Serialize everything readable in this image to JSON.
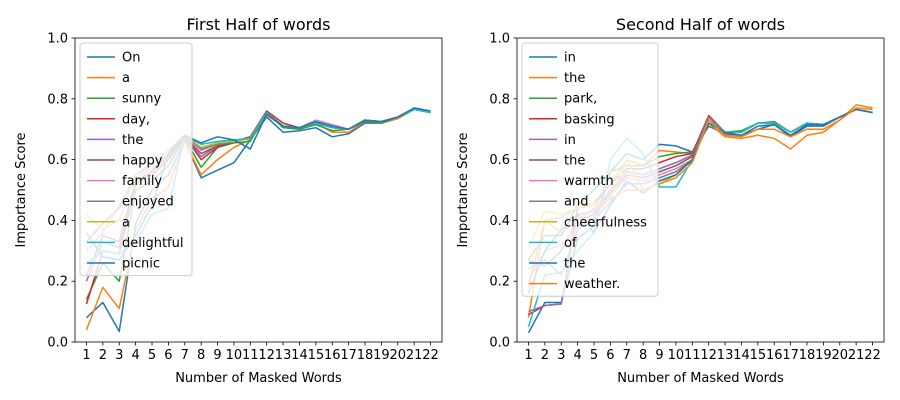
{
  "chart_data": [
    {
      "type": "line",
      "title": "First Half of words",
      "xlabel": "Number of Masked Words",
      "ylabel": "Importance Score",
      "xlim": [
        0.3,
        22.7
      ],
      "ylim": [
        0,
        1
      ],
      "x": [
        1,
        2,
        3,
        4,
        5,
        6,
        7,
        8,
        9,
        10,
        11,
        12,
        13,
        14,
        15,
        16,
        17,
        18,
        19,
        20,
        21,
        22
      ],
      "xticks": [
        "1",
        "2",
        "3",
        "4",
        "5",
        "6",
        "7",
        "8",
        "9",
        "10",
        "11",
        "12",
        "13",
        "14",
        "15",
        "16",
        "17",
        "18",
        "19",
        "20",
        "21",
        "22"
      ],
      "yticks": [
        "0.0",
        "0.2",
        "0.4",
        "0.6",
        "0.8",
        "1.0"
      ],
      "legend_position": "upper-left",
      "grid": false,
      "series": [
        {
          "name": "On",
          "color": "#1f77b4",
          "values": [
            0.08,
            0.13,
            0.035,
            0.39,
            0.5,
            0.55,
            0.66,
            0.54,
            0.565,
            0.59,
            0.665,
            0.74,
            0.69,
            0.695,
            0.705,
            0.675,
            0.685,
            0.72,
            0.72,
            0.735,
            0.765,
            0.755
          ]
        },
        {
          "name": "a",
          "color": "#ff7f0e",
          "values": [
            0.04,
            0.18,
            0.11,
            0.37,
            0.47,
            0.51,
            0.66,
            0.55,
            0.6,
            0.64,
            0.665,
            0.745,
            0.71,
            0.7,
            0.72,
            0.69,
            0.69,
            0.725,
            0.72,
            0.735,
            0.765,
            0.755
          ]
        },
        {
          "name": "sunny",
          "color": "#2ca02c",
          "values": [
            0.14,
            0.26,
            0.2,
            0.5,
            0.53,
            0.58,
            0.67,
            0.575,
            0.64,
            0.655,
            0.66,
            0.755,
            0.705,
            0.7,
            0.715,
            0.695,
            0.7,
            0.725,
            0.72,
            0.74,
            0.765,
            0.755
          ]
        },
        {
          "name": "day,",
          "color": "#d62728",
          "values": [
            0.125,
            0.3,
            0.29,
            0.52,
            0.55,
            0.6,
            0.675,
            0.6,
            0.64,
            0.66,
            0.675,
            0.76,
            0.72,
            0.705,
            0.72,
            0.71,
            0.7,
            0.73,
            0.725,
            0.74,
            0.765,
            0.755
          ]
        },
        {
          "name": "the",
          "color": "#9467bd",
          "values": [
            0.2,
            0.33,
            0.31,
            0.52,
            0.56,
            0.61,
            0.675,
            0.61,
            0.645,
            0.66,
            0.67,
            0.755,
            0.71,
            0.705,
            0.72,
            0.71,
            0.7,
            0.73,
            0.725,
            0.74,
            0.765,
            0.755
          ]
        },
        {
          "name": "happy",
          "color": "#8c564b",
          "values": [
            0.22,
            0.35,
            0.33,
            0.53,
            0.56,
            0.62,
            0.675,
            0.62,
            0.645,
            0.66,
            0.67,
            0.755,
            0.71,
            0.705,
            0.72,
            0.705,
            0.7,
            0.73,
            0.725,
            0.74,
            0.765,
            0.755
          ]
        },
        {
          "name": "family",
          "color": "#e377c2",
          "values": [
            0.3,
            0.36,
            0.45,
            0.54,
            0.57,
            0.62,
            0.68,
            0.63,
            0.65,
            0.66,
            0.67,
            0.755,
            0.71,
            0.705,
            0.73,
            0.715,
            0.7,
            0.73,
            0.725,
            0.74,
            0.765,
            0.755
          ]
        },
        {
          "name": "enjoyed",
          "color": "#7f7f7f",
          "values": [
            0.33,
            0.39,
            0.44,
            0.55,
            0.58,
            0.63,
            0.68,
            0.635,
            0.65,
            0.66,
            0.67,
            0.755,
            0.71,
            0.705,
            0.72,
            0.705,
            0.7,
            0.73,
            0.725,
            0.74,
            0.765,
            0.755
          ]
        },
        {
          "name": "a",
          "color": "#bcbd22",
          "values": [
            0.42,
            0.37,
            0.4,
            0.55,
            0.59,
            0.63,
            0.68,
            0.64,
            0.655,
            0.66,
            0.67,
            0.755,
            0.71,
            0.705,
            0.72,
            0.705,
            0.7,
            0.73,
            0.725,
            0.74,
            0.765,
            0.755
          ]
        },
        {
          "name": "delightful",
          "color": "#17becf",
          "values": [
            0.26,
            0.3,
            0.29,
            0.33,
            0.42,
            0.44,
            0.68,
            0.65,
            0.66,
            0.665,
            0.67,
            0.755,
            0.71,
            0.705,
            0.72,
            0.705,
            0.7,
            0.73,
            0.725,
            0.74,
            0.765,
            0.755
          ]
        },
        {
          "name": "picnic",
          "color": "#1f77b4",
          "values": [
            0.36,
            0.28,
            0.27,
            0.35,
            0.45,
            0.62,
            0.68,
            0.655,
            0.675,
            0.665,
            0.635,
            0.75,
            0.71,
            0.705,
            0.725,
            0.71,
            0.7,
            0.73,
            0.725,
            0.74,
            0.77,
            0.76
          ]
        }
      ]
    },
    {
      "type": "line",
      "title": "Second Half of words",
      "xlabel": "Number of Masked Words",
      "ylabel": "Importance Score",
      "xlim": [
        0.3,
        22.7
      ],
      "ylim": [
        0,
        1
      ],
      "x": [
        1,
        2,
        3,
        4,
        5,
        6,
        7,
        8,
        9,
        10,
        11,
        12,
        13,
        14,
        15,
        16,
        17,
        18,
        19,
        20,
        21,
        22
      ],
      "xticks": [
        "1",
        "2",
        "3",
        "4",
        "5",
        "6",
        "7",
        "8",
        "9",
        "10",
        "11",
        "12",
        "13",
        "14",
        "15",
        "16",
        "17",
        "18",
        "19",
        "20",
        "21",
        "22"
      ],
      "yticks": [
        "0.0",
        "0.2",
        "0.4",
        "0.6",
        "0.8",
        "1.0"
      ],
      "legend_position": "upper-left",
      "grid": false,
      "series": [
        {
          "name": "in",
          "color": "#1f77b4",
          "values": [
            0.03,
            0.13,
            0.13,
            0.34,
            0.38,
            0.56,
            0.62,
            0.6,
            0.65,
            0.645,
            0.625,
            0.71,
            0.685,
            0.68,
            0.7,
            0.715,
            0.675,
            0.71,
            0.71,
            0.74,
            0.765,
            0.755
          ]
        },
        {
          "name": "the",
          "color": "#ff7f0e",
          "values": [
            0.08,
            0.4,
            0.41,
            0.44,
            0.46,
            0.52,
            0.6,
            0.58,
            0.63,
            0.625,
            0.62,
            0.72,
            0.675,
            0.67,
            0.68,
            0.67,
            0.635,
            0.68,
            0.69,
            0.73,
            0.78,
            0.77
          ]
        },
        {
          "name": "park,",
          "color": "#2ca02c",
          "values": [
            0.27,
            0.35,
            0.35,
            0.45,
            0.5,
            0.56,
            0.58,
            0.58,
            0.61,
            0.62,
            0.625,
            0.73,
            0.69,
            0.695,
            0.72,
            0.725,
            0.69,
            0.72,
            0.715,
            0.74,
            0.765,
            0.755
          ]
        },
        {
          "name": "basking",
          "color": "#d62728",
          "values": [
            0.09,
            0.12,
            0.125,
            0.44,
            0.45,
            0.52,
            0.57,
            0.57,
            0.59,
            0.61,
            0.62,
            0.745,
            0.69,
            0.69,
            0.72,
            0.72,
            0.69,
            0.72,
            0.715,
            0.74,
            0.765,
            0.755
          ]
        },
        {
          "name": "in",
          "color": "#9467bd",
          "values": [
            0.1,
            0.12,
            0.125,
            0.42,
            0.43,
            0.5,
            0.56,
            0.55,
            0.57,
            0.59,
            0.615,
            0.74,
            0.69,
            0.69,
            0.72,
            0.72,
            0.69,
            0.72,
            0.715,
            0.74,
            0.765,
            0.755
          ]
        },
        {
          "name": "the",
          "color": "#8c564b",
          "values": [
            0.27,
            0.25,
            0.3,
            0.4,
            0.42,
            0.49,
            0.55,
            0.54,
            0.56,
            0.58,
            0.61,
            0.74,
            0.69,
            0.69,
            0.72,
            0.72,
            0.69,
            0.72,
            0.715,
            0.74,
            0.765,
            0.755
          ]
        },
        {
          "name": "warmth",
          "color": "#e377c2",
          "values": [
            0.2,
            0.3,
            0.32,
            0.38,
            0.41,
            0.48,
            0.54,
            0.53,
            0.55,
            0.57,
            0.6,
            0.74,
            0.69,
            0.69,
            0.72,
            0.72,
            0.69,
            0.72,
            0.715,
            0.74,
            0.765,
            0.755
          ]
        },
        {
          "name": "and",
          "color": "#7f7f7f",
          "values": [
            0.24,
            0.27,
            0.22,
            0.37,
            0.4,
            0.46,
            0.52,
            0.52,
            0.54,
            0.56,
            0.6,
            0.74,
            0.69,
            0.69,
            0.72,
            0.72,
            0.69,
            0.72,
            0.715,
            0.74,
            0.765,
            0.755
          ]
        },
        {
          "name": "cheerfulness",
          "color": "#bcbd22",
          "values": [
            0.31,
            0.43,
            0.42,
            0.44,
            0.45,
            0.47,
            0.6,
            0.5,
            0.52,
            0.55,
            0.6,
            0.73,
            0.69,
            0.69,
            0.72,
            0.72,
            0.69,
            0.72,
            0.715,
            0.74,
            0.765,
            0.755
          ]
        },
        {
          "name": "of",
          "color": "#17becf",
          "values": [
            0.05,
            0.22,
            0.23,
            0.3,
            0.36,
            0.6,
            0.67,
            0.62,
            0.51,
            0.51,
            0.6,
            0.73,
            0.69,
            0.69,
            0.72,
            0.72,
            0.69,
            0.72,
            0.715,
            0.74,
            0.765,
            0.755
          ]
        },
        {
          "name": "the",
          "color": "#1f77b4",
          "values": [
            0.16,
            0.3,
            0.37,
            0.42,
            0.36,
            0.45,
            0.53,
            0.49,
            0.53,
            0.55,
            0.6,
            0.72,
            0.69,
            0.68,
            0.71,
            0.715,
            0.68,
            0.715,
            0.715,
            0.74,
            0.765,
            0.755
          ]
        },
        {
          "name": "weather.",
          "color": "#ff7f0e",
          "values": [
            0.18,
            0.4,
            0.36,
            0.4,
            0.44,
            0.47,
            0.5,
            0.5,
            0.52,
            0.54,
            0.59,
            0.73,
            0.68,
            0.675,
            0.7,
            0.7,
            0.675,
            0.7,
            0.7,
            0.73,
            0.77,
            0.765
          ]
        }
      ]
    }
  ]
}
